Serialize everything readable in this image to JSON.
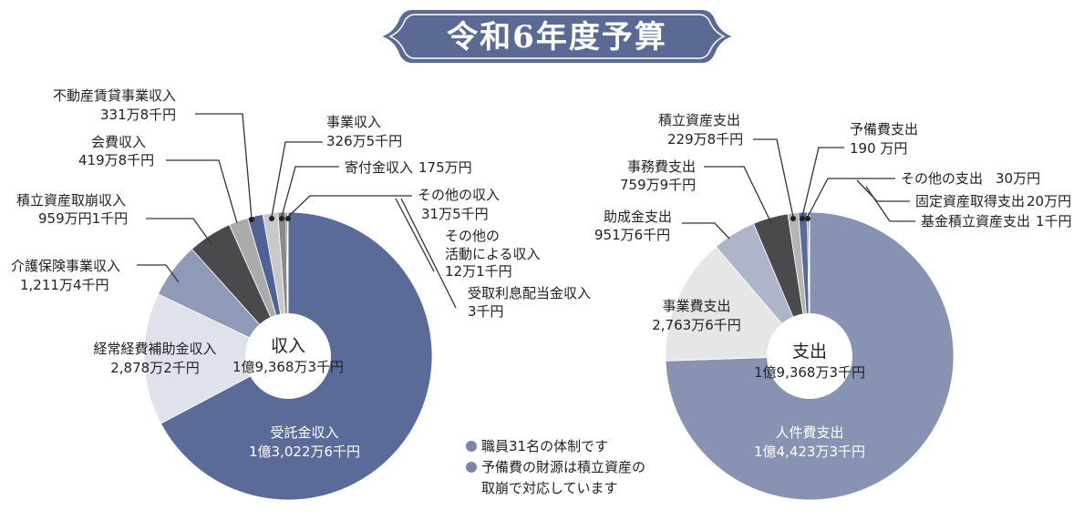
{
  "title": "令和6年度予算",
  "chart_data": [
    {
      "type": "pie",
      "title": "収入",
      "total": "1億9,368万3千円",
      "slices": [
        {
          "label": "受託金収入",
          "value_text": "1億3,022万6千円",
          "value": 130226,
          "color": "#5a6b99"
        },
        {
          "label": "経常経費補助金収入",
          "value_text": "2,878万2千円",
          "value": 28782,
          "color": "#dfe2ea"
        },
        {
          "label": "介護保険事業収入",
          "value_text": "1,211万4千円",
          "value": 12114,
          "color": "#8f9ab8"
        },
        {
          "label": "積立資産取崩収入",
          "value_text": "959万円1千円",
          "value": 9591,
          "color": "#4a4a4d"
        },
        {
          "label": "会費収入",
          "value_text": "419万8千円",
          "value": 4198,
          "color": "#ababab"
        },
        {
          "label": "不動産賃貸事業収入",
          "value_text": "331万8千円",
          "value": 3318,
          "color": "#4f6296"
        },
        {
          "label": "事業収入",
          "value_text": "326万5千円",
          "value": 3265,
          "color": "#c9c9c9"
        },
        {
          "label": "寄付金収入",
          "value_text": "175万円",
          "value": 1750,
          "color": "#8a8a8a"
        },
        {
          "label": "その他の収入",
          "value_text": "31万5千円",
          "value": 315,
          "color": "#6f6f6f"
        },
        {
          "label": "その他の活動による収入",
          "value_text": "12万1千円",
          "value": 121,
          "color": "#3e4a6e"
        },
        {
          "label": "受取利息配当金収入",
          "value_text": "3千円",
          "value": 3,
          "color": "#222222"
        }
      ]
    },
    {
      "type": "pie",
      "title": "支出",
      "total": "1億9,368万3千円",
      "slices": [
        {
          "label": "人件費支出",
          "value_text": "1億4,423万3千円",
          "value": 144233,
          "color": "#8893b4"
        },
        {
          "label": "事業費支出",
          "value_text": "2,763万6千円",
          "value": 27636,
          "color": "#e6e6e6"
        },
        {
          "label": "助成金支出",
          "value_text": "951万6千円",
          "value": 9516,
          "color": "#aeb5ca"
        },
        {
          "label": "事務費支出",
          "value_text": "759万9千円",
          "value": 7599,
          "color": "#4a4a4d"
        },
        {
          "label": "積立資産支出",
          "value_text": "229万8千円",
          "value": 2298,
          "color": "#b5b5b5"
        },
        {
          "label": "予備費支出",
          "value_text": "190 万円",
          "value": 1900,
          "color": "#5a6b99"
        },
        {
          "label": "その他の支出",
          "value_text": "30万円",
          "value": 300,
          "color": "#2d3550"
        },
        {
          "label": "固定資産取得支出",
          "value_text": "20万円",
          "value": 200,
          "color": "#555555"
        },
        {
          "label": "基金積立資産支出",
          "value_text": "1千円",
          "value": 1,
          "color": "#222222"
        }
      ]
    }
  ],
  "notes": [
    {
      "text": "職員31名の体制です"
    },
    {
      "text": "予備費の財源は積立資産の"
    },
    {
      "text": "取崩で対応しています"
    }
  ],
  "colors": {
    "banner": "#5b6a95",
    "bullet": "#7b86a8"
  }
}
